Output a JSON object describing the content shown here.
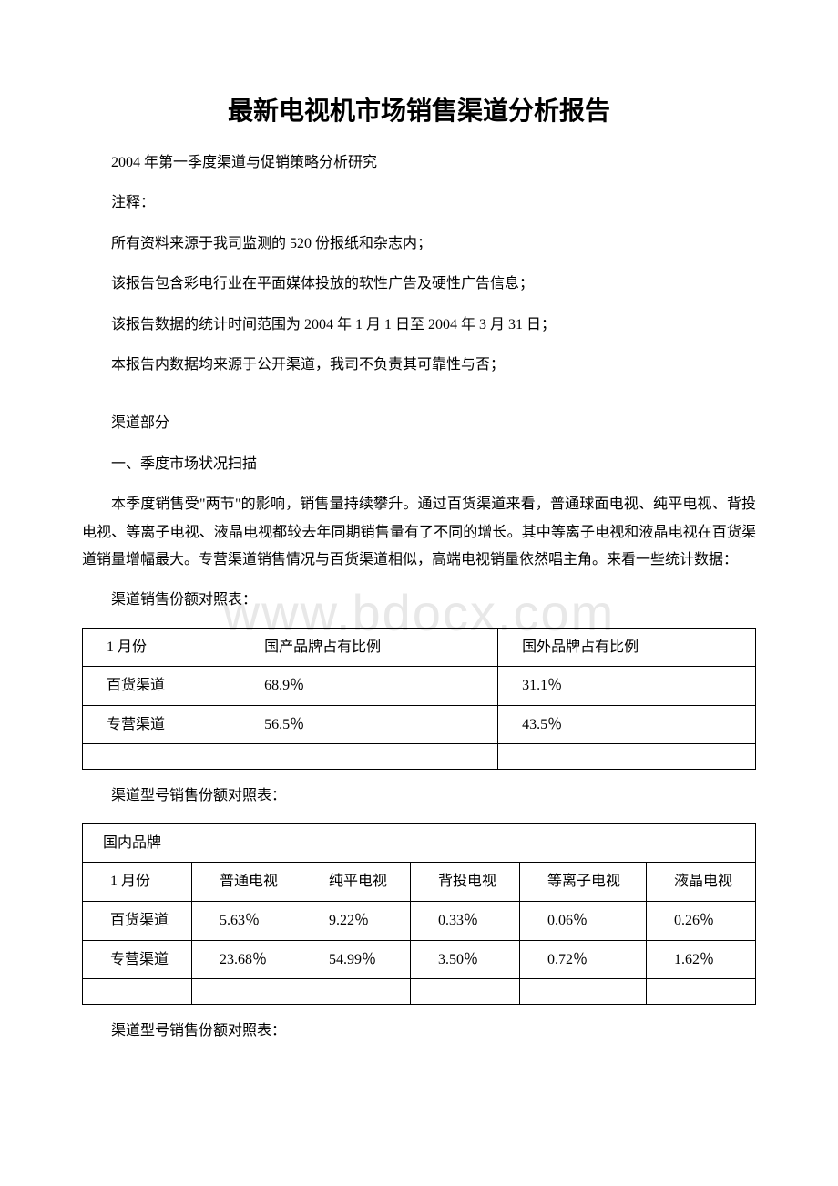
{
  "watermark": "www.bdocx.com",
  "title": "最新电视机市场销售渠道分析报告",
  "subtitle": "2004 年第一季度渠道与促销策略分析研究",
  "notes_label": "注释：",
  "notes": [
    "所有资料来源于我司监测的 520 份报纸和杂志内；",
    "该报告包含彩电行业在平面媒体投放的软性广告及硬性广告信息；",
    "该报告数据的统计时间范围为 2004 年 1 月 1 日至 2004 年 3 月 31 日；",
    "本报告内数据均来源于公开渠道，我司不负责其可靠性与否；"
  ],
  "channel_section_label": "渠道部分",
  "section1_heading": "一、季度市场状况扫描",
  "section1_body": "本季度销售受\"两节\"的影响，销售量持续攀升。通过百货渠道来看，普通球面电视、纯平电视、背投电视、等离子电视、液晶电视都较去年同期销售量有了不同的增长。其中等离子电视和液晶电视在百货渠道销量增幅最大。专营渠道销售情况与百货渠道相似，高端电视销量依然唱主角。来看一些统计数据：",
  "table1_caption": "渠道销售份额对照表：",
  "table1": {
    "columns": [
      "1 月份",
      "国产品牌占有比例",
      "国外品牌占有比例"
    ],
    "rows": [
      [
        "百货渠道",
        "68.9％",
        "31.1％"
      ],
      [
        "专营渠道",
        "56.5％",
        "43.5％"
      ]
    ]
  },
  "table2_caption": "渠道型号销售份额对照表：",
  "table2": {
    "header_span": "国内品牌",
    "columns": [
      "1 月份",
      "普通电视",
      "纯平电视",
      "背投电视",
      "等离子电视",
      "液晶电视"
    ],
    "rows": [
      [
        "百货渠道",
        "5.63％",
        "9.22％",
        "0.33％",
        "0.06％",
        "0.26％"
      ],
      [
        "专营渠道",
        "23.68％",
        "54.99％",
        "3.50％",
        "0.72％",
        "1.62％"
      ]
    ]
  },
  "table3_caption": "渠道型号销售份额对照表："
}
